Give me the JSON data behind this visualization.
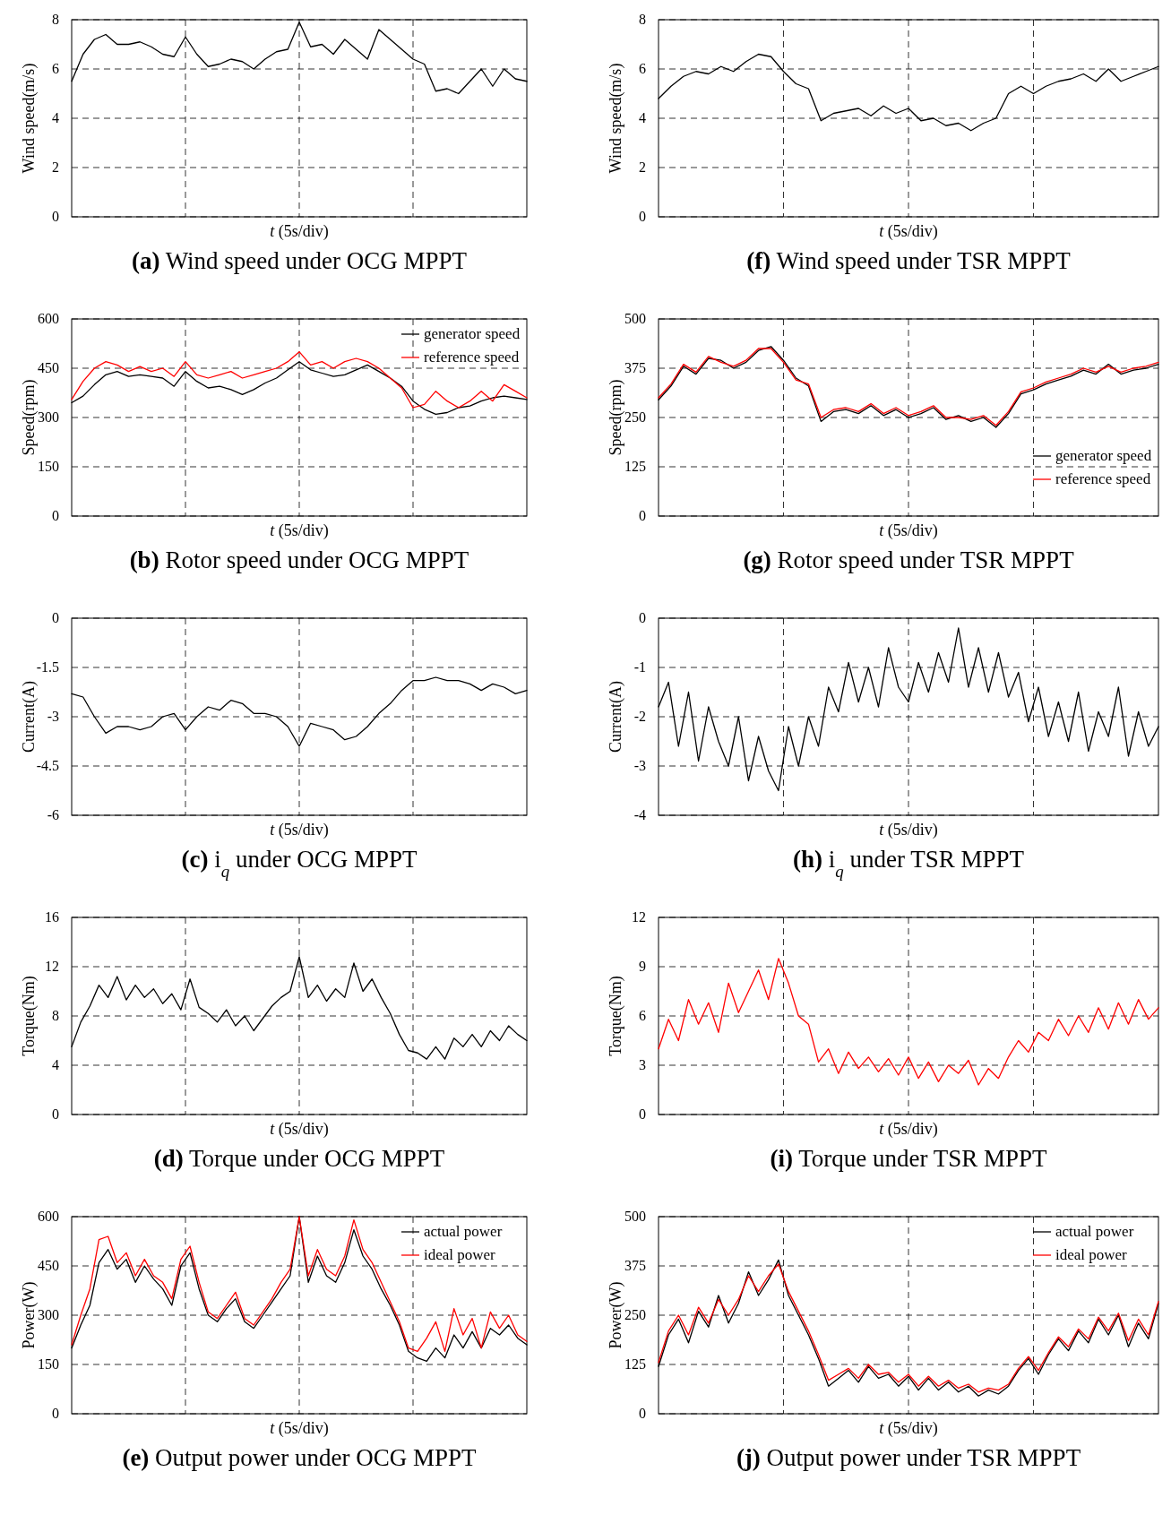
{
  "chart_data": [
    {
      "type": "line",
      "title": "(a) Wind speed under OCG MPPT",
      "xlabel": "t (5s/div)",
      "ylabel": "Wind speed(m/s)",
      "ylim": [
        0,
        8
      ],
      "yticks": [
        0,
        2,
        4,
        6,
        8
      ],
      "grid": true,
      "tick_labels": "y",
      "legend": false,
      "categories": [
        null,
        null,
        null,
        null,
        null,
        null,
        null,
        null,
        null,
        null,
        null,
        null,
        null,
        null,
        null,
        null,
        null,
        null,
        null,
        null,
        null,
        null,
        null,
        null,
        null,
        null,
        null,
        null,
        null,
        null,
        null,
        null,
        null,
        null,
        null,
        null,
        null,
        null,
        null,
        null,
        null
      ],
      "series": [
        {
          "color": "#000000",
          "values": [
            5.5,
            6.6,
            7.2,
            7.4,
            7.0,
            7.0,
            7.1,
            6.9,
            6.6,
            6.5,
            7.3,
            6.6,
            6.1,
            6.2,
            6.4,
            6.3,
            6.0,
            6.4,
            6.7,
            6.8,
            7.9,
            6.9,
            7.0,
            6.6,
            7.2,
            6.8,
            6.4,
            7.6,
            7.2,
            6.8,
            6.4,
            6.2,
            5.1,
            5.2,
            5.0,
            5.5,
            6.0,
            5.3,
            6.0,
            5.6,
            5.5
          ]
        }
      ]
    },
    {
      "type": "line",
      "title": "(f) Wind speed under TSR MPPT",
      "xlabel": "t (5s/div)",
      "ylabel": "Wind speed(m/s)",
      "ylim": [
        0,
        8
      ],
      "yticks": [
        0,
        2,
        4,
        6,
        8
      ],
      "grid": true,
      "tick_labels": "y",
      "legend": false,
      "categories": [
        null,
        null,
        null,
        null,
        null,
        null,
        null,
        null,
        null,
        null,
        null,
        null,
        null,
        null,
        null,
        null,
        null,
        null,
        null,
        null,
        null,
        null,
        null,
        null,
        null,
        null,
        null,
        null,
        null,
        null,
        null,
        null,
        null,
        null,
        null,
        null,
        null,
        null,
        null,
        null,
        null
      ],
      "series": [
        {
          "color": "#000000",
          "values": [
            4.8,
            5.3,
            5.7,
            5.9,
            5.8,
            6.1,
            5.9,
            6.3,
            6.6,
            6.5,
            5.9,
            5.4,
            5.2,
            3.9,
            4.2,
            4.3,
            4.4,
            4.1,
            4.5,
            4.2,
            4.4,
            3.9,
            4.0,
            3.7,
            3.8,
            3.5,
            3.8,
            4.0,
            5.0,
            5.3,
            5.0,
            5.3,
            5.5,
            5.6,
            5.8,
            5.5,
            6.0,
            5.5,
            5.7,
            5.9,
            6.1
          ]
        }
      ]
    },
    {
      "type": "line",
      "title": "(b) Rotor speed under OCG MPPT",
      "xlabel": "t (5s/div)",
      "ylabel": "Speed(rpm)",
      "ylim": [
        0,
        600
      ],
      "yticks": [
        0,
        150,
        300,
        450,
        600
      ],
      "grid": true,
      "tick_labels": "y",
      "legend": "top right",
      "categories": [
        null,
        null,
        null,
        null,
        null,
        null,
        null,
        null,
        null,
        null,
        null,
        null,
        null,
        null,
        null,
        null,
        null,
        null,
        null,
        null,
        null,
        null,
        null,
        null,
        null,
        null,
        null,
        null,
        null,
        null,
        null,
        null,
        null,
        null,
        null,
        null,
        null,
        null,
        null,
        null,
        null
      ],
      "series": [
        {
          "name": "generator speed",
          "color": "#000000",
          "values": [
            345,
            365,
            400,
            430,
            440,
            425,
            430,
            425,
            420,
            395,
            440,
            410,
            390,
            395,
            385,
            370,
            385,
            405,
            420,
            445,
            470,
            445,
            435,
            425,
            430,
            445,
            460,
            440,
            420,
            395,
            350,
            325,
            310,
            315,
            330,
            335,
            350,
            360,
            365,
            360,
            355
          ]
        },
        {
          "name": "reference speed",
          "color": "#ff0000",
          "values": [
            355,
            410,
            450,
            470,
            460,
            440,
            455,
            440,
            450,
            425,
            470,
            430,
            420,
            430,
            440,
            420,
            430,
            440,
            450,
            470,
            500,
            460,
            470,
            450,
            470,
            480,
            470,
            450,
            420,
            390,
            330,
            340,
            380,
            350,
            330,
            350,
            380,
            350,
            400,
            380,
            360
          ]
        }
      ]
    },
    {
      "type": "line",
      "title": "(g) Rotor speed under TSR MPPT",
      "xlabel": "t (5s/div)",
      "ylabel": "Speed(rpm)",
      "ylim": [
        0,
        500
      ],
      "yticks": [
        0,
        125,
        250,
        375,
        500
      ],
      "grid": true,
      "tick_labels": "y",
      "legend": "bottom right",
      "categories": [
        null,
        null,
        null,
        null,
        null,
        null,
        null,
        null,
        null,
        null,
        null,
        null,
        null,
        null,
        null,
        null,
        null,
        null,
        null,
        null,
        null,
        null,
        null,
        null,
        null,
        null,
        null,
        null,
        null,
        null,
        null,
        null,
        null,
        null,
        null,
        null,
        null,
        null,
        null,
        null,
        null
      ],
      "series": [
        {
          "name": "generator speed",
          "color": "#000000",
          "values": [
            295,
            330,
            380,
            360,
            400,
            395,
            375,
            390,
            420,
            430,
            395,
            350,
            330,
            240,
            265,
            270,
            260,
            280,
            255,
            270,
            250,
            260,
            275,
            245,
            255,
            240,
            250,
            225,
            260,
            310,
            320,
            335,
            345,
            355,
            370,
            360,
            385,
            360,
            370,
            375,
            385
          ]
        },
        {
          "name": "reference speed",
          "color": "#ff0000",
          "values": [
            300,
            335,
            385,
            365,
            405,
            390,
            380,
            395,
            425,
            425,
            390,
            345,
            335,
            250,
            270,
            275,
            265,
            285,
            260,
            275,
            255,
            265,
            280,
            250,
            250,
            245,
            255,
            230,
            265,
            315,
            325,
            340,
            350,
            360,
            375,
            365,
            380,
            365,
            375,
            380,
            390
          ]
        }
      ]
    },
    {
      "type": "line",
      "title": "(c) i$_{q}$ under OCG MPPT",
      "xlabel": "t (5s/div)",
      "ylabel": "Current(A)",
      "ylim": [
        -6,
        0
      ],
      "yticks": [
        -6,
        -4.5,
        -3,
        -1.5,
        0
      ],
      "grid": true,
      "tick_labels": "y",
      "legend": false,
      "categories": [
        null,
        null,
        null,
        null,
        null,
        null,
        null,
        null,
        null,
        null,
        null,
        null,
        null,
        null,
        null,
        null,
        null,
        null,
        null,
        null,
        null,
        null,
        null,
        null,
        null,
        null,
        null,
        null,
        null,
        null,
        null,
        null,
        null,
        null,
        null,
        null,
        null,
        null,
        null,
        null,
        null
      ],
      "series": [
        {
          "color": "#000000",
          "values": [
            -2.3,
            -2.4,
            -3.0,
            -3.5,
            -3.3,
            -3.3,
            -3.4,
            -3.3,
            -3.0,
            -2.9,
            -3.4,
            -3.0,
            -2.7,
            -2.8,
            -2.5,
            -2.6,
            -2.9,
            -2.9,
            -3.0,
            -3.3,
            -3.9,
            -3.2,
            -3.3,
            -3.4,
            -3.7,
            -3.6,
            -3.3,
            -2.9,
            -2.6,
            -2.2,
            -1.9,
            -1.9,
            -1.8,
            -1.9,
            -1.9,
            -2.0,
            -2.2,
            -2.0,
            -2.1,
            -2.3,
            -2.2
          ]
        }
      ]
    },
    {
      "type": "line",
      "title": "(h) i$_{q}$ under TSR MPPT",
      "xlabel": "t (5s/div)",
      "ylabel": "Current(A)",
      "ylim": [
        -4,
        0
      ],
      "yticks": [
        -4,
        -3,
        -2,
        -1,
        0
      ],
      "grid": true,
      "tick_labels": "y",
      "legend": false,
      "categories": [
        null,
        null,
        null,
        null,
        null,
        null,
        null,
        null,
        null,
        null,
        null,
        null,
        null,
        null,
        null,
        null,
        null,
        null,
        null,
        null,
        null,
        null,
        null,
        null,
        null,
        null,
        null,
        null,
        null,
        null,
        null,
        null,
        null,
        null,
        null,
        null,
        null,
        null,
        null,
        null,
        null,
        null,
        null,
        null,
        null,
        null,
        null,
        null,
        null,
        null,
        null
      ],
      "series": [
        {
          "color": "#000000",
          "values": [
            -1.8,
            -1.3,
            -2.6,
            -1.5,
            -2.9,
            -1.8,
            -2.5,
            -3.0,
            -2.0,
            -3.3,
            -2.4,
            -3.1,
            -3.5,
            -2.2,
            -3.0,
            -2.0,
            -2.6,
            -1.4,
            -1.9,
            -0.9,
            -1.7,
            -1.0,
            -1.8,
            -0.6,
            -1.4,
            -1.7,
            -0.9,
            -1.5,
            -0.7,
            -1.3,
            -0.2,
            -1.4,
            -0.6,
            -1.5,
            -0.7,
            -1.6,
            -1.1,
            -2.1,
            -1.4,
            -2.4,
            -1.7,
            -2.5,
            -1.5,
            -2.7,
            -1.9,
            -2.4,
            -1.4,
            -2.8,
            -1.9,
            -2.6,
            -2.2
          ]
        }
      ]
    },
    {
      "type": "line",
      "title": "(d) Torque under OCG MPPT",
      "xlabel": "t (5s/div)",
      "ylabel": "Torque(Nm)",
      "ylim": [
        0,
        16
      ],
      "yticks": [
        0,
        4,
        8,
        12,
        16
      ],
      "grid": true,
      "tick_labels": "y",
      "legend": false,
      "categories": [
        null,
        null,
        null,
        null,
        null,
        null,
        null,
        null,
        null,
        null,
        null,
        null,
        null,
        null,
        null,
        null,
        null,
        null,
        null,
        null,
        null,
        null,
        null,
        null,
        null,
        null,
        null,
        null,
        null,
        null,
        null,
        null,
        null,
        null,
        null,
        null,
        null,
        null,
        null,
        null,
        null,
        null,
        null,
        null,
        null,
        null,
        null,
        null,
        null,
        null,
        null
      ],
      "series": [
        {
          "color": "#000000",
          "values": [
            5.5,
            7.5,
            8.8,
            10.5,
            9.5,
            11.2,
            9.3,
            10.5,
            9.5,
            10.2,
            9.0,
            9.8,
            8.5,
            11.0,
            8.7,
            8.2,
            7.5,
            8.5,
            7.2,
            8.0,
            6.8,
            7.8,
            8.8,
            9.5,
            10.0,
            12.8,
            9.5,
            10.5,
            9.2,
            10.2,
            9.5,
            12.3,
            10.0,
            11.0,
            9.5,
            8.2,
            6.5,
            5.2,
            5.0,
            4.5,
            5.5,
            4.5,
            6.2,
            5.5,
            6.5,
            5.5,
            6.8,
            6.0,
            7.2,
            6.5,
            6.0
          ]
        }
      ]
    },
    {
      "type": "line",
      "title": "(i) Torque under TSR MPPT",
      "xlabel": "t (5s/div)",
      "ylabel": "Torque(Nm)",
      "ylim": [
        0,
        12
      ],
      "yticks": [
        0,
        3,
        6,
        9,
        12
      ],
      "grid": true,
      "tick_labels": "y",
      "legend": false,
      "categories": [
        null,
        null,
        null,
        null,
        null,
        null,
        null,
        null,
        null,
        null,
        null,
        null,
        null,
        null,
        null,
        null,
        null,
        null,
        null,
        null,
        null,
        null,
        null,
        null,
        null,
        null,
        null,
        null,
        null,
        null,
        null,
        null,
        null,
        null,
        null,
        null,
        null,
        null,
        null,
        null,
        null,
        null,
        null,
        null,
        null,
        null,
        null,
        null,
        null,
        null,
        null
      ],
      "series": [
        {
          "color": "#ff0000",
          "values": [
            4.0,
            5.8,
            4.5,
            7.0,
            5.5,
            6.8,
            5.0,
            8.0,
            6.2,
            7.5,
            8.8,
            7.0,
            9.5,
            8.0,
            6.0,
            5.5,
            3.2,
            4.0,
            2.5,
            3.8,
            2.8,
            3.5,
            2.6,
            3.4,
            2.4,
            3.5,
            2.2,
            3.2,
            2.0,
            3.0,
            2.5,
            3.3,
            1.8,
            2.8,
            2.2,
            3.5,
            4.5,
            3.8,
            5.0,
            4.5,
            5.8,
            4.8,
            6.0,
            5.0,
            6.5,
            5.2,
            6.8,
            5.5,
            7.0,
            5.8,
            6.5
          ]
        }
      ]
    },
    {
      "type": "line",
      "title": "(e) Output power under OCG MPPT",
      "xlabel": "t (5s/div)",
      "ylabel": "Power(W)",
      "ylim": [
        0,
        600
      ],
      "yticks": [
        0,
        150,
        300,
        450,
        600
      ],
      "grid": true,
      "tick_labels": "y",
      "legend": "top right",
      "categories": [
        null,
        null,
        null,
        null,
        null,
        null,
        null,
        null,
        null,
        null,
        null,
        null,
        null,
        null,
        null,
        null,
        null,
        null,
        null,
        null,
        null,
        null,
        null,
        null,
        null,
        null,
        null,
        null,
        null,
        null,
        null,
        null,
        null,
        null,
        null,
        null,
        null,
        null,
        null,
        null,
        null,
        null,
        null,
        null,
        null,
        null,
        null,
        null,
        null,
        null,
        null
      ],
      "series": [
        {
          "name": "actual power",
          "color": "#000000",
          "values": [
            200,
            270,
            330,
            460,
            500,
            440,
            470,
            400,
            450,
            410,
            380,
            330,
            450,
            490,
            380,
            300,
            280,
            320,
            350,
            280,
            260,
            300,
            340,
            380,
            420,
            600,
            400,
            480,
            420,
            400,
            460,
            560,
            480,
            440,
            380,
            330,
            270,
            190,
            170,
            160,
            200,
            170,
            240,
            200,
            250,
            200,
            260,
            240,
            270,
            230,
            210
          ]
        },
        {
          "name": "ideal power",
          "color": "#ff0000",
          "values": [
            210,
            300,
            380,
            530,
            540,
            460,
            490,
            420,
            470,
            420,
            400,
            350,
            470,
            510,
            400,
            310,
            290,
            330,
            370,
            290,
            270,
            310,
            350,
            400,
            440,
            600,
            420,
            500,
            440,
            420,
            480,
            590,
            500,
            460,
            400,
            340,
            280,
            200,
            190,
            230,
            280,
            190,
            320,
            240,
            290,
            200,
            310,
            260,
            300,
            240,
            220
          ]
        }
      ]
    },
    {
      "type": "line",
      "title": "(j) Output power under TSR MPPT",
      "xlabel": "t (5s/div)",
      "ylabel": "Power(W)",
      "ylim": [
        0,
        500
      ],
      "yticks": [
        0,
        125,
        250,
        375,
        500
      ],
      "grid": true,
      "tick_labels": "y",
      "legend": "top right",
      "categories": [
        null,
        null,
        null,
        null,
        null,
        null,
        null,
        null,
        null,
        null,
        null,
        null,
        null,
        null,
        null,
        null,
        null,
        null,
        null,
        null,
        null,
        null,
        null,
        null,
        null,
        null,
        null,
        null,
        null,
        null,
        null,
        null,
        null,
        null,
        null,
        null,
        null,
        null,
        null,
        null,
        null,
        null,
        null,
        null,
        null,
        null,
        null,
        null,
        null,
        null,
        null
      ],
      "series": [
        {
          "name": "actual power",
          "color": "#000000",
          "values": [
            120,
            200,
            240,
            180,
            260,
            220,
            300,
            230,
            280,
            360,
            300,
            340,
            390,
            300,
            250,
            200,
            140,
            70,
            90,
            110,
            80,
            120,
            90,
            100,
            70,
            95,
            60,
            90,
            60,
            80,
            55,
            70,
            45,
            60,
            50,
            70,
            110,
            140,
            100,
            150,
            190,
            160,
            210,
            180,
            240,
            200,
            250,
            170,
            230,
            190,
            280
          ]
        },
        {
          "name": "ideal power",
          "color": "#ff0000",
          "values": [
            130,
            210,
            250,
            200,
            270,
            230,
            290,
            250,
            290,
            350,
            310,
            350,
            380,
            310,
            260,
            210,
            150,
            85,
            100,
            115,
            90,
            125,
            100,
            105,
            80,
            100,
            70,
            95,
            70,
            85,
            65,
            75,
            55,
            65,
            60,
            75,
            115,
            145,
            110,
            155,
            195,
            170,
            215,
            190,
            245,
            210,
            255,
            185,
            240,
            200,
            285
          ]
        }
      ]
    }
  ]
}
